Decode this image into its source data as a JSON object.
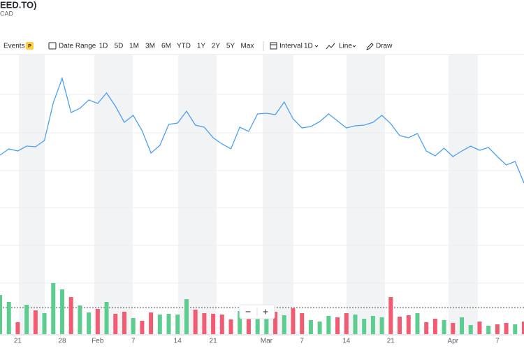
{
  "header": {
    "title": "EED.TO)",
    "currency": "CAD"
  },
  "toolbar": {
    "events": "Events",
    "events_badge": "P",
    "date_range": "Date Range",
    "ranges": [
      "1D",
      "5D",
      "1M",
      "3M",
      "6M",
      "YTD",
      "1Y",
      "2Y",
      "5Y",
      "Max"
    ],
    "interval": "Interval",
    "interval_value": "1D",
    "line": "Line",
    "draw": "Draw"
  },
  "zoom": {
    "out": "−",
    "in": "+"
  },
  "chart_data": {
    "type": "line",
    "categories": [
      null,
      null,
      "21",
      null,
      null,
      null,
      null,
      "28",
      null,
      null,
      null,
      "Feb",
      null,
      null,
      null,
      "7",
      null,
      null,
      null,
      null,
      "14",
      null,
      null,
      null,
      "21",
      null,
      null,
      null,
      null,
      null,
      "Mar",
      null,
      null,
      null,
      "7",
      null,
      null,
      null,
      null,
      "14",
      null,
      null,
      null,
      null,
      "21",
      null,
      null,
      null,
      null,
      null,
      null,
      "Apr",
      null,
      null,
      null,
      null,
      "7",
      null,
      null,
      null
    ],
    "series": [
      {
        "color": "#4a9ff5",
        "values": [
          64,
          66.25,
          65.5,
          67.25,
          67,
          69.25,
          82.75,
          91.5,
          79.25,
          80.75,
          83.75,
          82.5,
          86.25,
          81.5,
          75.75,
          78.25,
          72.75,
          64.75,
          67.5,
          75,
          75.5,
          79.75,
          74.75,
          74,
          70.25,
          68,
          66.25,
          74,
          72.5,
          78.75,
          79,
          78.5,
          83,
          77,
          73.75,
          74.25,
          76,
          78.75,
          76.25,
          73.75,
          74.5,
          74.75,
          75.75,
          78.25,
          75.25,
          71,
          70.25,
          71.75,
          65.5,
          63.75,
          66.5,
          63.5,
          65.5,
          67.25,
          65.75,
          66.75,
          63.5,
          60.5,
          61.75,
          54
        ]
      },
      {
        "type": "bar",
        "axis": "y2",
        "up_color": "#5ccc8f",
        "down_color": "#f25c72",
        "values": [
          56,
          46,
          17,
          42,
          34,
          30,
          73,
          64,
          53,
          41,
          31,
          36,
          46,
          29,
          32,
          23,
          19,
          31,
          28,
          29,
          28,
          50,
          35,
          30,
          29,
          28,
          21,
          33,
          22,
          30,
          28,
          32,
          27,
          37,
          30,
          20,
          18,
          26,
          24,
          30,
          28,
          22,
          26,
          24,
          53,
          25,
          27,
          30,
          17,
          22,
          20,
          16,
          24,
          13,
          18,
          12,
          14,
          16,
          14,
          18
        ]
      }
    ],
    "ylim": [
      0,
      100
    ],
    "y2lim": [
      0,
      100
    ],
    "grid": true
  }
}
